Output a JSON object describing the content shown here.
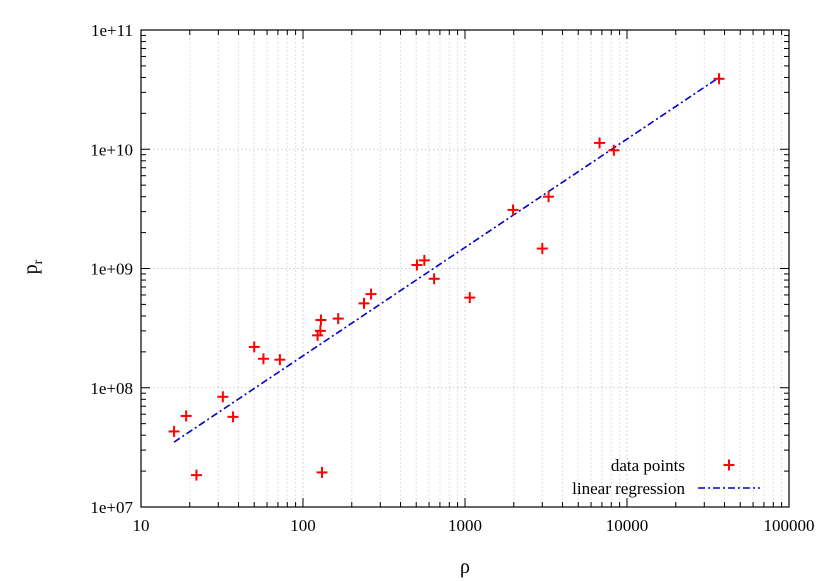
{
  "chart_data": {
    "type": "scatter",
    "xlabel": "ρ",
    "ylabel_main": "p",
    "ylabel_sub": "r",
    "xscale": "log",
    "yscale": "log",
    "xlim": [
      10,
      100000
    ],
    "ylim": [
      10000000,
      100000000000
    ],
    "x_ticks": [
      10,
      100,
      1000,
      10000,
      100000
    ],
    "x_tick_labels": [
      "10",
      "100",
      "1000",
      "10000",
      "100000"
    ],
    "y_ticks": [
      10000000,
      100000000,
      1000000000,
      10000000000,
      100000000000
    ],
    "y_tick_labels": [
      "1e+07",
      "1e+08",
      "1e+09",
      "1e+10",
      "1e+11"
    ],
    "grid": true,
    "legend_position": "bottom-right",
    "colors": {
      "points": "#ff0000",
      "regression": "#0000cc"
    },
    "series": [
      {
        "name": "data points",
        "style": "plus-markers",
        "points": [
          [
            16,
            43000000
          ],
          [
            19,
            58000000
          ],
          [
            22,
            18500000
          ],
          [
            32,
            84000000
          ],
          [
            37,
            57000000
          ],
          [
            50,
            220000000
          ],
          [
            57,
            175000000
          ],
          [
            72,
            172000000
          ],
          [
            123,
            275000000
          ],
          [
            128,
            300000000
          ],
          [
            129,
            370000000
          ],
          [
            131,
            19500000
          ],
          [
            165,
            380000000
          ],
          [
            238,
            510000000
          ],
          [
            263,
            610000000
          ],
          [
            505,
            1070000000
          ],
          [
            561,
            1170000000
          ],
          [
            645,
            820000000
          ],
          [
            1070,
            570000000
          ],
          [
            1980,
            3100000000
          ],
          [
            3000,
            1470000000
          ],
          [
            3280,
            4000000000
          ],
          [
            6770,
            11300000000
          ],
          [
            8300,
            9800000000
          ],
          [
            37000,
            39000000000
          ]
        ]
      },
      {
        "name": "linear regression",
        "style": "dash-dot-line",
        "points": [
          [
            16,
            35000000
          ],
          [
            37000,
            40000000000
          ]
        ]
      }
    ]
  }
}
